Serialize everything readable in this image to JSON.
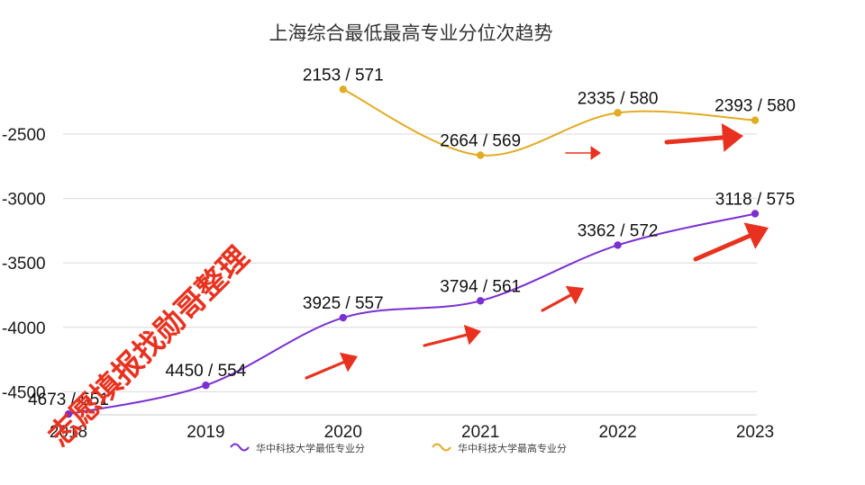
{
  "chart_data": {
    "type": "line",
    "title": "上海综合最低最高专业分位次趋势",
    "categories": [
      "2018",
      "2019",
      "2020",
      "2021",
      "2022",
      "2023"
    ],
    "ylim": [
      -4700,
      -2000
    ],
    "yticks": [
      -2500,
      -3000,
      -3500,
      -4000,
      -4500
    ],
    "grid": true,
    "legend_position": "bottom",
    "series": [
      {
        "name": "华中科技大学最低专业分",
        "color": "#7b2fd0",
        "values": [
          -4673,
          -4450,
          -3925,
          -3794,
          -3362,
          -3118
        ],
        "labels": [
          "4673 / 551",
          "4450 / 554",
          "3925 / 557",
          "3794 / 561",
          "3362 / 572",
          "3118 / 575"
        ]
      },
      {
        "name": "华中科技大学最高专业分",
        "color": "#e2ac22",
        "values": [
          null,
          null,
          -2153,
          -2664,
          -2335,
          -2393
        ],
        "labels": [
          null,
          null,
          "2153 / 571",
          "2664 / 569",
          "2335 / 580",
          "2393 / 580"
        ]
      }
    ],
    "annotation_color": "#e8321f"
  },
  "watermark": {
    "text": "志愿填报找勋哥整理",
    "color": "#e8321f"
  }
}
